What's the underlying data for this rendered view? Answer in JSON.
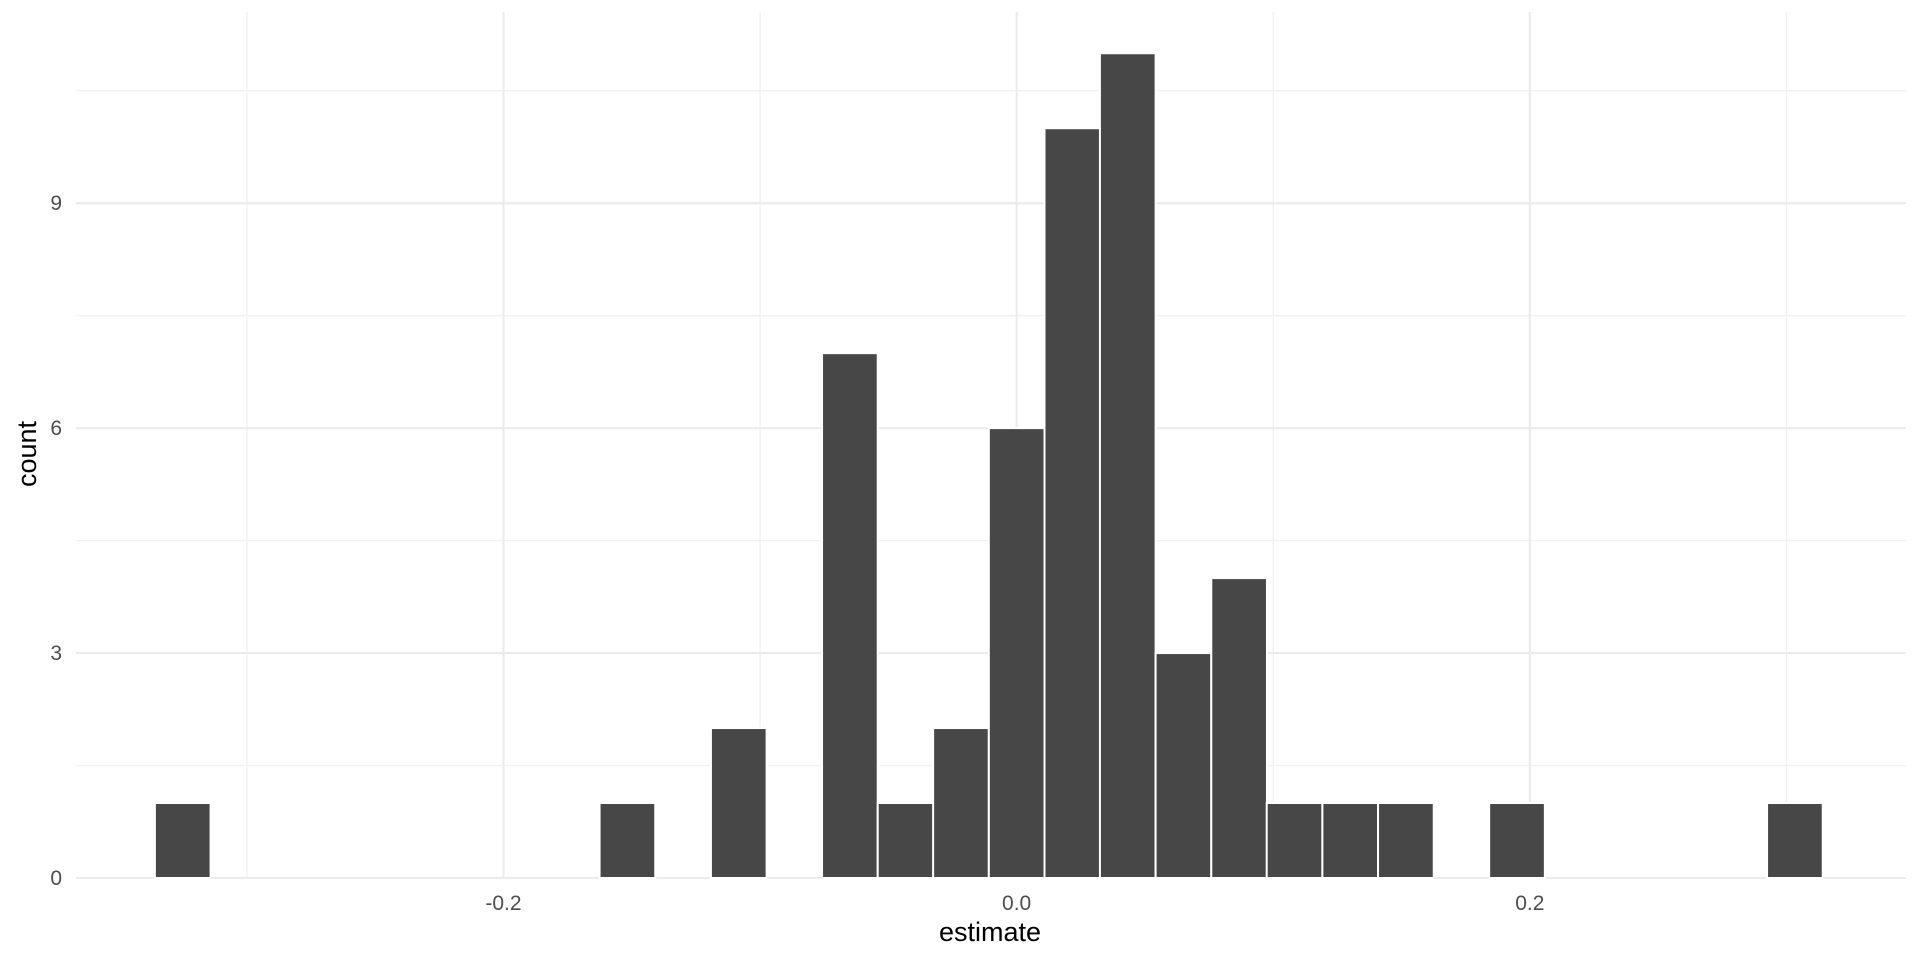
{
  "chart_data": {
    "type": "bar",
    "title": "",
    "xlabel": "estimate",
    "ylabel": "count",
    "bin_width": 0.0217,
    "bin_centers": [
      -0.325,
      -0.1517,
      -0.1083,
      -0.065,
      -0.0433,
      -0.0217,
      0.0,
      0.0217,
      0.0433,
      0.065,
      0.0867,
      0.1083,
      0.13,
      0.1517,
      0.195,
      0.3033
    ],
    "values": [
      1,
      1,
      2,
      7,
      1,
      2,
      6,
      10,
      11,
      3,
      4,
      1,
      1,
      1,
      1,
      1
    ],
    "xlim": [
      -0.3666,
      0.3466
    ],
    "ylim": [
      0,
      11.55
    ],
    "x_ticks": [
      -0.2,
      0.0,
      0.2
    ],
    "x_tick_labels": [
      "-0.2",
      "0.0",
      "0.2"
    ],
    "x_minor_ticks": [
      -0.3,
      -0.1,
      0.1,
      0.3
    ],
    "y_ticks": [
      0,
      3,
      6,
      9
    ],
    "y_tick_labels": [
      "0",
      "3",
      "6",
      "9"
    ],
    "y_minor_ticks": [
      1.5,
      4.5,
      7.5,
      10.5
    ],
    "grid": true,
    "legend": "none"
  }
}
